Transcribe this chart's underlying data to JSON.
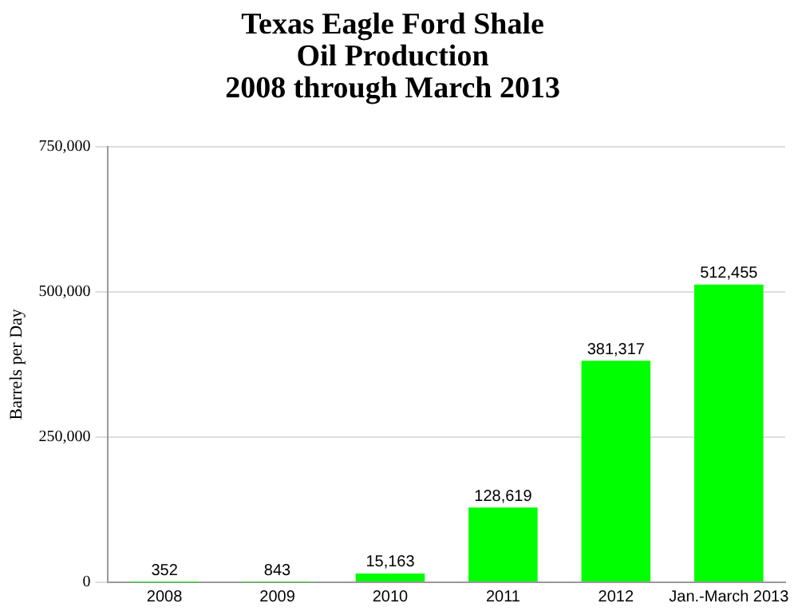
{
  "chart_data": {
    "type": "bar",
    "title": "Texas Eagle Ford Shale\nOil Production\n2008 through March 2013",
    "ylabel": "Barrels per Day",
    "categories": [
      "2008",
      "2009",
      "2010",
      "2011",
      "2012",
      "Jan.-March 2013"
    ],
    "values": [
      352,
      843,
      15163,
      128619,
      381317,
      512455
    ],
    "color": "#00ff00",
    "ylim": [
      0,
      750000
    ],
    "yticks": [
      {
        "value": 0,
        "label": "0"
      },
      {
        "value": 250000,
        "label": "250,000"
      },
      {
        "value": 500000,
        "label": "500,000"
      },
      {
        "value": 750000,
        "label": "750,000"
      }
    ],
    "value_labels": [
      "352",
      "843",
      "15,163",
      "128,619",
      "381,317",
      "512,455"
    ],
    "grid": "y",
    "legend": false
  }
}
